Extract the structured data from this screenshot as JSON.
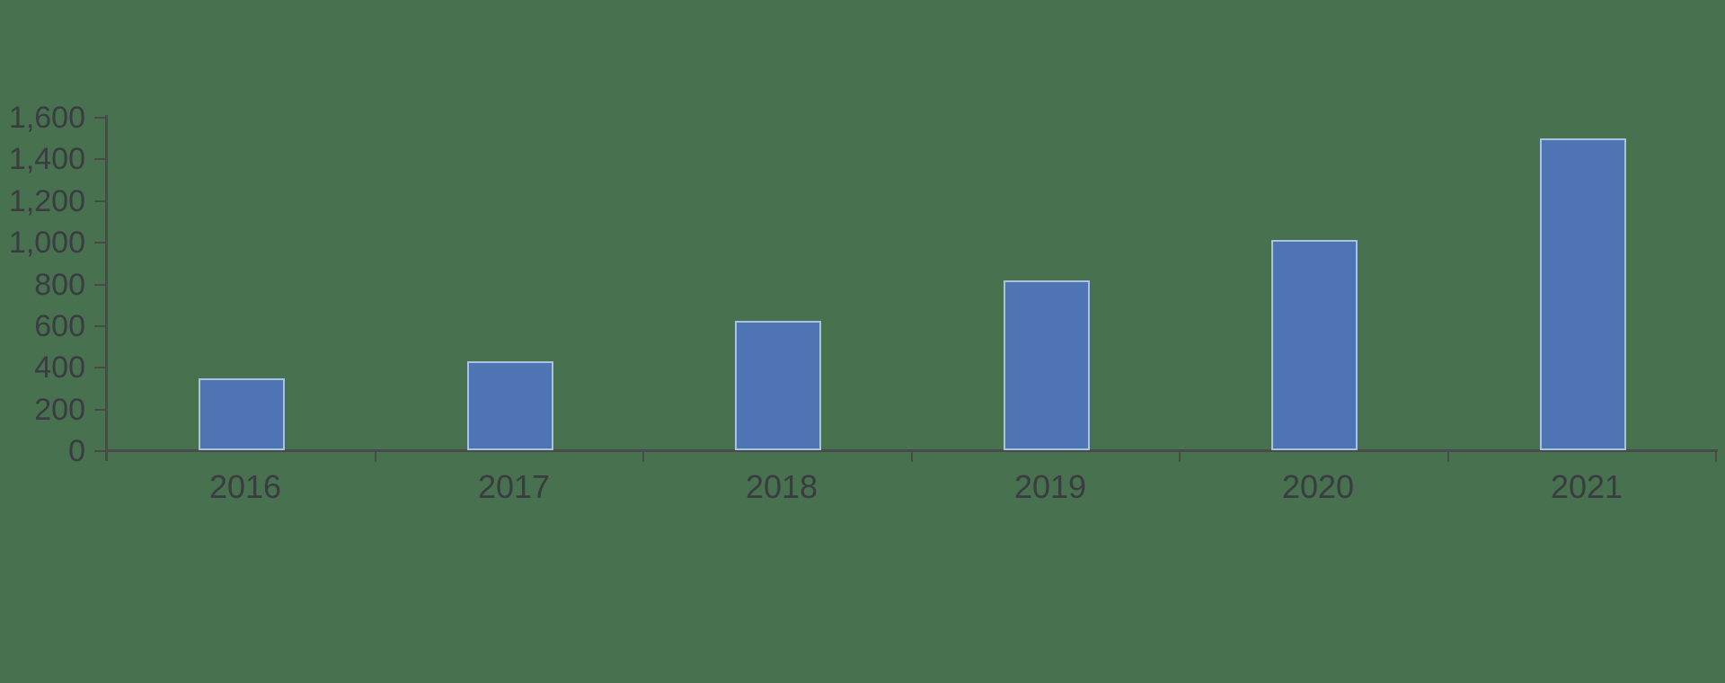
{
  "chart_data": {
    "type": "bar",
    "categories": [
      "2016",
      "2017",
      "2018",
      "2019",
      "2020",
      "2021"
    ],
    "values": [
      345,
      425,
      620,
      815,
      1010,
      1495
    ],
    "title": "",
    "xlabel": "",
    "ylabel": "",
    "ylim": [
      0,
      1600
    ],
    "ytick_interval": 200,
    "ytick_labels": [
      "0",
      "200",
      "400",
      "600",
      "800",
      "1,000",
      "1,200",
      "1,400",
      "1,600"
    ],
    "grid": "off",
    "legend": "none",
    "colors": {
      "background": "#47714F",
      "bar_fill": "#4E74B4",
      "bar_border": "#A9C2DF",
      "axis_line": "#4A4A4A",
      "tick_mark": "#4A4A4A",
      "label_text": "#3B3B42"
    }
  }
}
